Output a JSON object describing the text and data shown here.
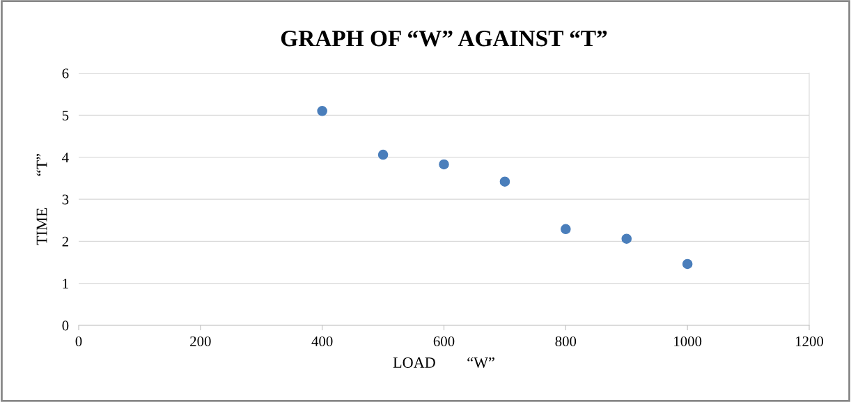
{
  "chart_data": {
    "type": "scatter",
    "title": "GRAPH OF “W” AGAINST “T”",
    "xlabel": "LOAD        “W”",
    "ylabel": "TIME        “T”",
    "x": [
      400,
      500,
      600,
      700,
      800,
      900,
      1000
    ],
    "series": [
      {
        "color": "#4a7ebb",
        "values": [
          5.1,
          4.06,
          3.83,
          3.42,
          2.29,
          2.06,
          1.46
        ]
      }
    ],
    "xlim": [
      0,
      1200
    ],
    "xticks": [
      0,
      200,
      400,
      600,
      800,
      1000,
      1200
    ],
    "ylim": [
      0,
      6
    ],
    "yticks": [
      0,
      1,
      2,
      3,
      4,
      5,
      6
    ],
    "grid": "y",
    "marker": "circle",
    "legend": false
  }
}
